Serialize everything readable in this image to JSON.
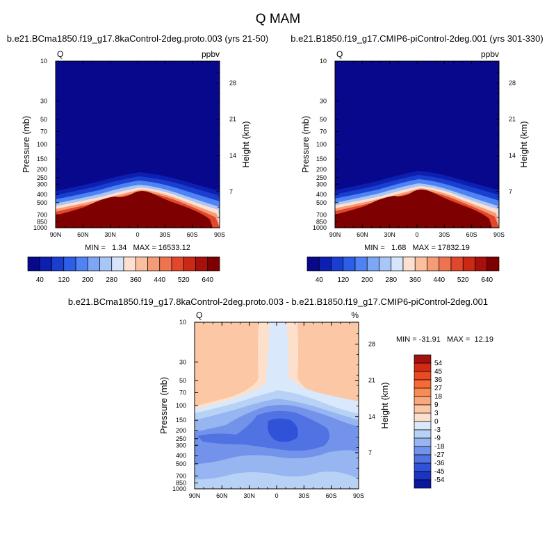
{
  "figure": {
    "title": "Q MAM"
  },
  "chart_data": [
    {
      "type": "contour",
      "title": "b.e21.BCma1850.f19_g17.8kaControl-2deg.proto.003 (yrs 21-50)",
      "variable": "Q",
      "units": "ppbv",
      "xlabel": "",
      "ylabel": "Pressure (mb)",
      "ylabel_right": "Height (km)",
      "x_ticks": [
        "90N",
        "60N",
        "30N",
        "0",
        "30S",
        "60S",
        "90S"
      ],
      "y_ticks": [
        "10",
        "30",
        "50",
        "70",
        "100",
        "150",
        "200",
        "250",
        "300",
        "400",
        "500",
        "700",
        "850",
        "1000"
      ],
      "y_ticks_right": [
        "28",
        "21",
        "14",
        "7"
      ],
      "stats_text": "MIN =   1.34   MAX = 16533.12",
      "min": 1.34,
      "max": 16533.12,
      "colorbar_orientation": "horizontal",
      "colorbar_labels": [
        "40",
        "120",
        "200",
        "280",
        "360",
        "440",
        "520",
        "640"
      ],
      "colorbar_levels": [
        40,
        80,
        120,
        160,
        200,
        240,
        280,
        320,
        360,
        400,
        440,
        480,
        520,
        560,
        640
      ],
      "colorbar_colors": [
        "#08088c",
        "#0c1fb0",
        "#1a3fd0",
        "#2c5ee8",
        "#4f82f2",
        "#7ea6f6",
        "#a9c6f9",
        "#d6e5fb",
        "#fde0cf",
        "#f9bf9f",
        "#f59b75",
        "#ee7450",
        "#e2462c",
        "#cc2816",
        "#a8100c",
        "#7e0000"
      ]
    },
    {
      "type": "contour",
      "title": "b.e21.B1850.f19_g17.CMIP6-piControl-2deg.001 (yrs 301-330)",
      "variable": "Q",
      "units": "ppbv",
      "xlabel": "",
      "ylabel": "Pressure (mb)",
      "ylabel_right": "Height (km)",
      "x_ticks": [
        "90N",
        "60N",
        "30N",
        "0",
        "30S",
        "60S",
        "90S"
      ],
      "y_ticks": [
        "10",
        "30",
        "50",
        "70",
        "100",
        "150",
        "200",
        "250",
        "300",
        "400",
        "500",
        "700",
        "850",
        "1000"
      ],
      "y_ticks_right": [
        "28",
        "21",
        "14",
        "7"
      ],
      "stats_text": "MIN =   1.68   MAX = 17832.19",
      "min": 1.68,
      "max": 17832.19,
      "colorbar_orientation": "horizontal",
      "colorbar_labels": [
        "40",
        "120",
        "200",
        "280",
        "360",
        "440",
        "520",
        "640"
      ],
      "colorbar_levels": [
        40,
        80,
        120,
        160,
        200,
        240,
        280,
        320,
        360,
        400,
        440,
        480,
        520,
        560,
        640
      ],
      "colorbar_colors": [
        "#08088c",
        "#0c1fb0",
        "#1a3fd0",
        "#2c5ee8",
        "#4f82f2",
        "#7ea6f6",
        "#a9c6f9",
        "#d6e5fb",
        "#fde0cf",
        "#f9bf9f",
        "#f59b75",
        "#ee7450",
        "#e2462c",
        "#cc2816",
        "#a8100c",
        "#7e0000"
      ]
    },
    {
      "type": "contour",
      "title": "b.e21.BCma1850.f19_g17.8kaControl-2deg.proto.003 - b.e21.B1850.f19_g17.CMIP6-piControl-2deg.001",
      "variable": "Q",
      "units": "%",
      "xlabel": "",
      "ylabel": "Pressure (mb)",
      "ylabel_right": "Height (km)",
      "x_ticks": [
        "90N",
        "60N",
        "30N",
        "0",
        "30S",
        "60S",
        "90S"
      ],
      "y_ticks": [
        "10",
        "30",
        "50",
        "70",
        "100",
        "150",
        "200",
        "250",
        "300",
        "400",
        "500",
        "700",
        "850",
        "1000"
      ],
      "y_ticks_right": [
        "28",
        "21",
        "14",
        "7"
      ],
      "stats_text": "MIN = -31.91   MAX =  12.19",
      "min": -31.91,
      "max": 12.19,
      "colorbar_orientation": "vertical",
      "colorbar_labels": [
        "54",
        "45",
        "36",
        "27",
        "18",
        "9",
        "3",
        "0",
        "-3",
        "-9",
        "-18",
        "-27",
        "-36",
        "-45",
        "-54"
      ],
      "colorbar_colors": [
        "#a50f0f",
        "#d42a14",
        "#ea4a22",
        "#f66a34",
        "#f88a54",
        "#f9a77c",
        "#fbc7a4",
        "#fde0cc",
        "#d9e9fb",
        "#b8d2f6",
        "#97b5f1",
        "#7393ea",
        "#5072e2",
        "#2f52d8",
        "#1a34c4",
        "#0c17a0"
      ]
    }
  ]
}
